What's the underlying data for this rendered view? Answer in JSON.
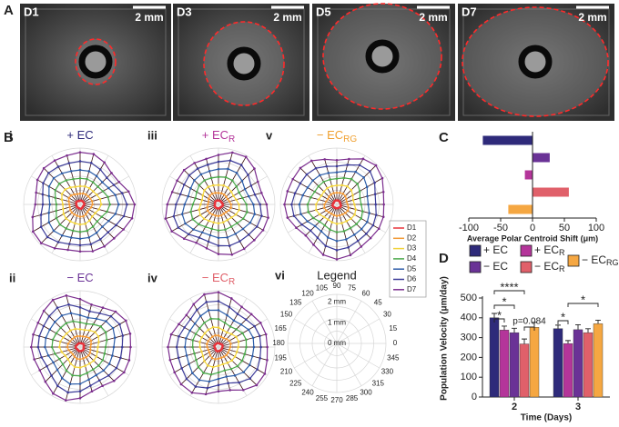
{
  "panel_labels": {
    "a": "A",
    "b": "B",
    "c": "C",
    "d": "D"
  },
  "panel_a": {
    "images": [
      {
        "label": "D1",
        "scale": "2 mm"
      },
      {
        "label": "D3",
        "scale": "2 mm"
      },
      {
        "label": "D5",
        "scale": "2 mm"
      },
      {
        "label": "D7",
        "scale": "2 mm"
      }
    ]
  },
  "panel_b": {
    "plots": [
      {
        "index": "i",
        "label": "+ EC",
        "color": "#2e2a7a"
      },
      {
        "index": "iii",
        "label": "+ EC",
        "sub": "R",
        "color": "#b4359a"
      },
      {
        "index": "v",
        "label": "− EC",
        "sub": "RG",
        "color": "#f0a030"
      },
      {
        "index": "ii",
        "label": "− EC",
        "color": "#6a3296"
      },
      {
        "index": "iv",
        "label": "− EC",
        "sub": "R",
        "color": "#e0606a"
      }
    ],
    "legend_panel": {
      "index": "vi",
      "title": "Legend",
      "angle_labels": [
        "0",
        "15",
        "30",
        "45",
        "60",
        "75",
        "90",
        "105",
        "120",
        "135",
        "150",
        "165",
        "180",
        "195",
        "210",
        "225",
        "240",
        "255",
        "270",
        "285",
        "300",
        "315",
        "330",
        "345"
      ],
      "radius_labels": [
        "0 mm",
        "1 mm",
        "2 mm"
      ]
    },
    "days": [
      {
        "name": "D1",
        "color": "#e8323a"
      },
      {
        "name": "D2",
        "color": "#f29a38"
      },
      {
        "name": "D3",
        "color": "#f1d23b"
      },
      {
        "name": "D4",
        "color": "#4aa84a"
      },
      {
        "name": "D5",
        "color": "#2d5da8"
      },
      {
        "name": "D6",
        "color": "#3b3a98"
      },
      {
        "name": "D7",
        "color": "#7b2d8e"
      }
    ]
  },
  "chart_data": [
    {
      "type": "hbar",
      "xlabel": "Average Polar Centroid Shift (μm)",
      "categories": [
        null,
        null,
        null,
        null,
        null
      ],
      "values": [
        -78,
        27,
        -12,
        57,
        -38
      ],
      "colors": [
        "#2e2a7a",
        "#6a3296",
        "#b4359a",
        "#e0606a",
        "#f5a742"
      ],
      "xlim": [
        -100,
        100
      ],
      "xticks": [
        -100,
        -50,
        0,
        50,
        100
      ]
    },
    {
      "type": "bar",
      "ylabel": "Population Velocity (μm/day)",
      "xlabel": "Time (Days)",
      "categories": [
        "2",
        "3"
      ],
      "series": [
        {
          "name": "+ EC",
          "color": "#2e2a7a",
          "values": [
            400,
            345
          ],
          "errors": [
            22,
            18
          ]
        },
        {
          "name": "+ EC",
          "sub": "R",
          "color": "#b4359a",
          "values": [
            338,
            270
          ],
          "errors": [
            20,
            15
          ]
        },
        {
          "name": "− EC",
          "color": "#6a3296",
          "values": [
            325,
            340
          ],
          "errors": [
            22,
            25
          ]
        },
        {
          "name": "− EC",
          "sub": "R",
          "color": "#e0606a",
          "values": [
            268,
            325
          ],
          "errors": [
            25,
            20
          ]
        },
        {
          "name": "− EC",
          "sub": "RG",
          "color": "#f5a742",
          "values": [
            352,
            370
          ],
          "errors": [
            25,
            18
          ]
        }
      ],
      "annotations": [
        "*",
        "*",
        "****",
        "p=0.084",
        "*",
        "*"
      ],
      "ylim": [
        0,
        500
      ],
      "yticks": [
        0,
        100,
        200,
        300,
        400,
        500
      ]
    }
  ]
}
